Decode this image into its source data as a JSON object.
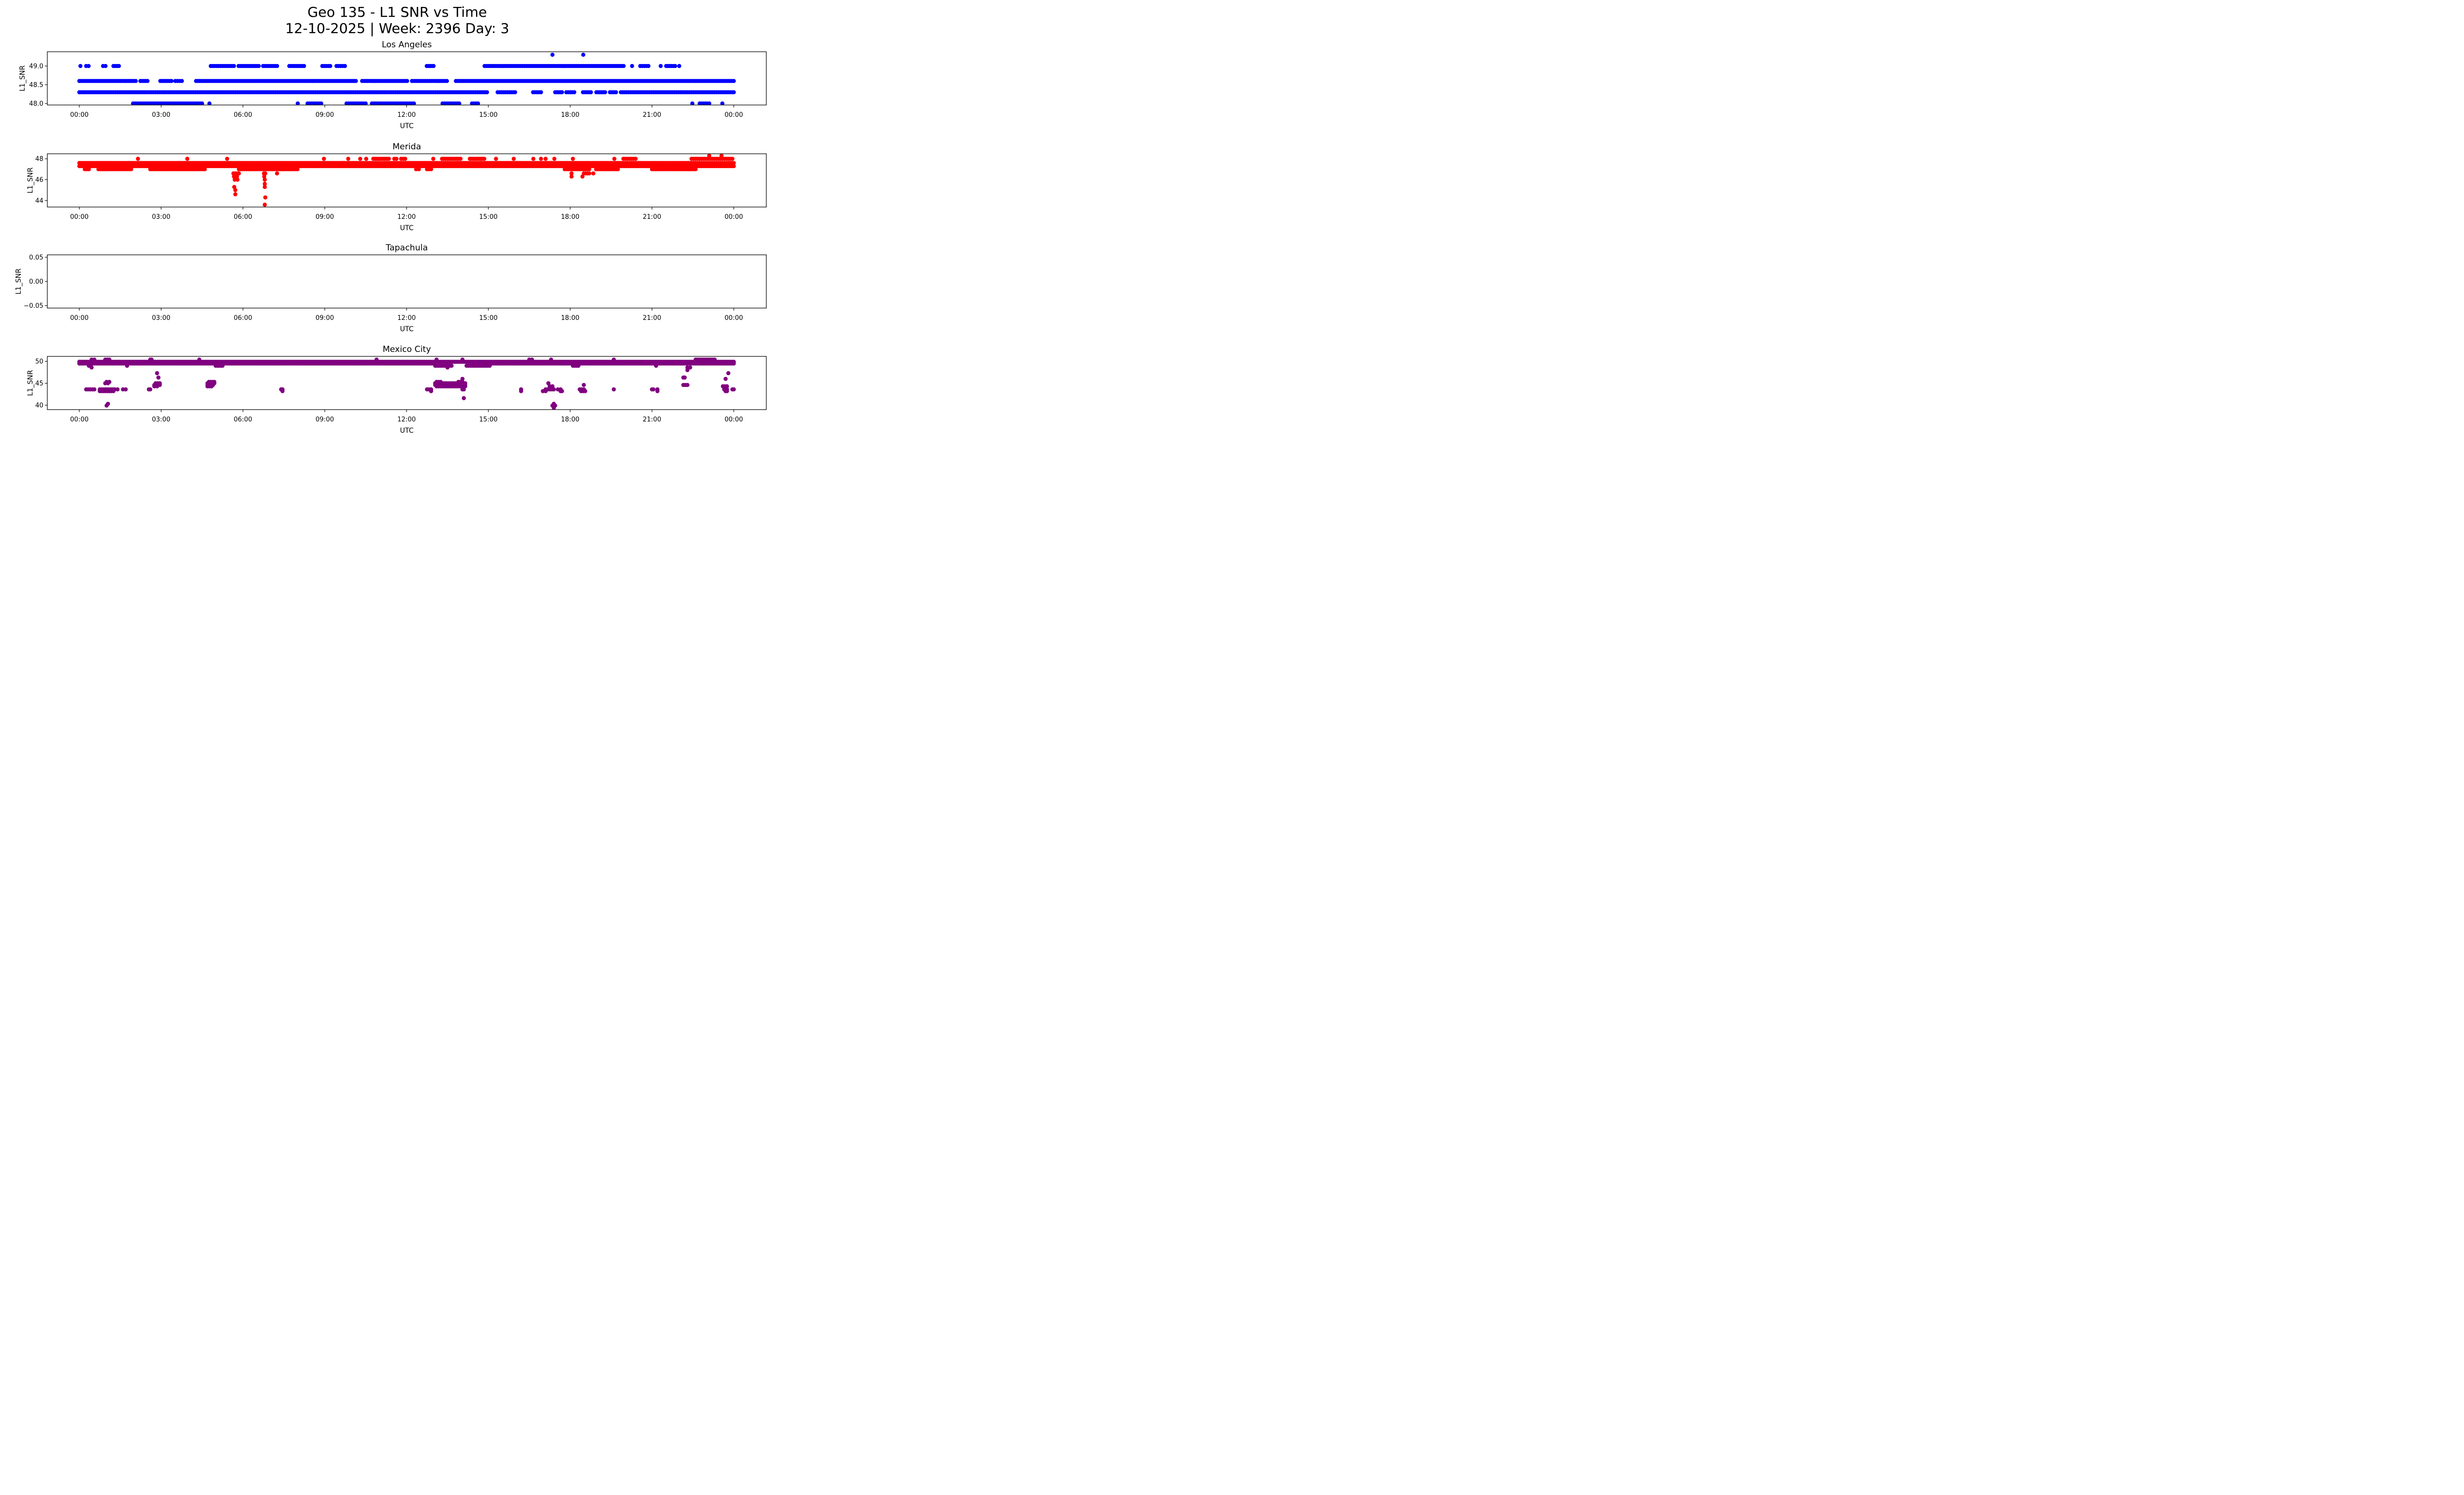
{
  "figure": {
    "title_line1": "Geo 135 - L1 SNR vs Time",
    "title_line2": "12-10-2025 | Week: 2396 Day: 3"
  },
  "chart_data": [
    {
      "type": "scatter",
      "title": "Los Angeles",
      "xlabel": "UTC",
      "ylabel": "L1_SNR",
      "color": "#0000ff",
      "xlim_hours": [
        -2.9,
        25.4
      ],
      "ylim": [
        47.96,
        49.38
      ],
      "x_ticks": [
        "00:00",
        "03:00",
        "06:00",
        "09:00",
        "12:00",
        "15:00",
        "18:00",
        "21:00",
        "00:00"
      ],
      "y_ticks": [
        "48.0",
        "48.5",
        "49.0"
      ],
      "y_tick_values": [
        48.0,
        48.5,
        49.0
      ],
      "runs": [
        {
          "value": 48.6,
          "spans_hours": [
            [
              0.0,
              2.07
            ],
            [
              2.24,
              2.5
            ],
            [
              2.97,
              3.38
            ],
            [
              3.52,
              3.76
            ],
            [
              4.28,
              10.14
            ],
            [
              10.37,
              12.02
            ],
            [
              12.2,
              13.48
            ],
            [
              13.81,
              24.0
            ]
          ]
        },
        {
          "value": 48.3,
          "spans_hours": [
            [
              0.0,
              14.95
            ],
            [
              15.34,
              15.98
            ],
            [
              16.64,
              16.93
            ],
            [
              17.45,
              17.7
            ],
            [
              17.86,
              18.15
            ],
            [
              18.47,
              18.76
            ],
            [
              18.96,
              19.28
            ],
            [
              19.46,
              19.68
            ],
            [
              19.86,
              24.0
            ]
          ]
        },
        {
          "value": 49.0,
          "spans_hours": [
            [
              0.04,
              0.04
            ],
            [
              0.25,
              0.34
            ],
            [
              0.87,
              0.96
            ],
            [
              1.25,
              1.45
            ],
            [
              4.82,
              5.67
            ],
            [
              5.84,
              6.58
            ],
            [
              6.74,
              7.25
            ],
            [
              7.7,
              8.24
            ],
            [
              8.91,
              9.2
            ],
            [
              9.43,
              9.74
            ],
            [
              12.74,
              12.99
            ],
            [
              14.86,
              19.96
            ],
            [
              20.27,
              20.27
            ],
            [
              20.57,
              20.87
            ],
            [
              21.32,
              21.32
            ],
            [
              21.52,
              21.85
            ],
            [
              22.0,
              22.0
            ]
          ]
        },
        {
          "value": 48.0,
          "spans_hours": [
            [
              1.97,
              4.5
            ],
            [
              4.77,
              4.77
            ],
            [
              8.01,
              8.01
            ],
            [
              8.37,
              8.87
            ],
            [
              9.8,
              10.5
            ],
            [
              10.73,
              12.27
            ],
            [
              13.32,
              13.93
            ],
            [
              14.4,
              14.62
            ],
            [
              22.48,
              22.48
            ],
            [
              22.75,
              23.1
            ],
            [
              23.58,
              23.58
            ]
          ]
        },
        {
          "value": 49.3,
          "spans_hours": [
            [
              17.35,
              17.35
            ],
            [
              18.48,
              18.48
            ]
          ]
        }
      ]
    },
    {
      "type": "scatter",
      "title": "Merida",
      "xlabel": "UTC",
      "ylabel": "L1_SNR",
      "color": "#ff0000",
      "xlim_hours": [
        -2.9,
        25.4
      ],
      "ylim": [
        43.38,
        48.48
      ],
      "x_ticks": [
        "00:00",
        "03:00",
        "06:00",
        "09:00",
        "12:00",
        "15:00",
        "18:00",
        "21:00",
        "00:00"
      ],
      "y_ticks": [
        "44",
        "46",
        "48"
      ],
      "y_tick_values": [
        44,
        46,
        48
      ],
      "runs": [
        {
          "value": 47.6,
          "spans_hours": [
            [
              0.0,
              24.0
            ]
          ]
        },
        {
          "value": 47.3,
          "spans_hours": [
            [
              0.0,
              24.0
            ]
          ]
        },
        {
          "value": 47.0,
          "spans_hours": [
            [
              0.2,
              0.35
            ],
            [
              0.7,
              1.9
            ],
            [
              2.6,
              4.6
            ],
            [
              5.85,
              8.0
            ],
            [
              12.35,
              12.45
            ],
            [
              12.75,
              12.9
            ],
            [
              17.8,
              18.7
            ],
            [
              18.95,
              19.75
            ],
            [
              21.0,
              22.6
            ]
          ]
        },
        {
          "value": 48.0,
          "spans_hours": [
            [
              2.15,
              2.15
            ],
            [
              3.96,
              3.96
            ],
            [
              5.42,
              5.42
            ],
            [
              8.97,
              8.97
            ],
            [
              9.86,
              9.86
            ],
            [
              10.3,
              10.3
            ],
            [
              10.52,
              10.52
            ],
            [
              10.78,
              11.35
            ],
            [
              11.55,
              11.63
            ],
            [
              11.8,
              11.95
            ],
            [
              12.98,
              12.98
            ],
            [
              13.3,
              13.98
            ],
            [
              14.32,
              14.85
            ],
            [
              15.28,
              15.28
            ],
            [
              15.93,
              15.93
            ],
            [
              16.65,
              16.65
            ],
            [
              16.93,
              16.93
            ],
            [
              17.1,
              17.1
            ],
            [
              17.42,
              17.42
            ],
            [
              18.1,
              18.1
            ],
            [
              19.62,
              19.62
            ],
            [
              19.95,
              20.4
            ],
            [
              22.45,
              23.95
            ]
          ]
        },
        {
          "value": 48.3,
          "spans_hours": [
            [
              23.1,
              23.1
            ],
            [
              23.55,
              23.55
            ]
          ]
        },
        {
          "value": 46.6,
          "spans_hours": [
            [
              5.65,
              5.85
            ],
            [
              6.77,
              6.82
            ],
            [
              7.25,
              7.25
            ],
            [
              18.05,
              18.05
            ],
            [
              18.5,
              18.7
            ],
            [
              18.85,
              18.85
            ]
          ]
        },
        {
          "value": 46.3,
          "spans_hours": [
            [
              5.67,
              5.78
            ],
            [
              6.78,
              6.8
            ],
            [
              18.05,
              18.05
            ],
            [
              18.45,
              18.45
            ]
          ]
        },
        {
          "value": 46.0,
          "spans_hours": [
            [
              5.7,
              5.8
            ],
            [
              6.8,
              6.8
            ]
          ]
        },
        {
          "value": 45.6,
          "spans_hours": [
            [
              6.8,
              6.8
            ]
          ]
        },
        {
          "value": 45.3,
          "spans_hours": [
            [
              5.68,
              5.68
            ],
            [
              6.8,
              6.8
            ]
          ]
        },
        {
          "value": 45.0,
          "spans_hours": [
            [
              5.72,
              5.72
            ]
          ]
        },
        {
          "value": 44.6,
          "spans_hours": [
            [
              5.72,
              5.72
            ]
          ]
        },
        {
          "value": 44.3,
          "spans_hours": [
            [
              6.82,
              6.82
            ]
          ]
        },
        {
          "value": 43.6,
          "spans_hours": [
            [
              6.8,
              6.8
            ]
          ]
        }
      ]
    },
    {
      "type": "scatter",
      "title": "Tapachula",
      "xlabel": "UTC",
      "ylabel": "L1_SNR",
      "color": "#000000",
      "xlim_hours": [
        -2.9,
        25.4
      ],
      "ylim": [
        -0.055,
        0.055
      ],
      "x_ticks": [
        "00:00",
        "03:00",
        "06:00",
        "09:00",
        "12:00",
        "15:00",
        "18:00",
        "21:00",
        "00:00"
      ],
      "y_ticks": [
        "−0.05",
        "0.00",
        "0.05"
      ],
      "y_tick_values": [
        -0.05,
        0.0,
        0.05
      ],
      "runs": []
    },
    {
      "type": "scatter",
      "title": "Mexico City",
      "xlabel": "UTC",
      "ylabel": "L1_SNR",
      "color": "#800080",
      "xlim_hours": [
        -2.9,
        25.4
      ],
      "ylim": [
        38.98,
        51.14
      ],
      "x_ticks": [
        "00:00",
        "03:00",
        "06:00",
        "09:00",
        "12:00",
        "15:00",
        "18:00",
        "21:00",
        "00:00"
      ],
      "y_ticks": [
        "40",
        "45",
        "50"
      ],
      "y_tick_values": [
        40,
        45,
        50
      ],
      "runs": [
        {
          "value": 49.9,
          "spans_hours": [
            [
              0.0,
              24.0
            ]
          ]
        },
        {
          "value": 49.5,
          "spans_hours": [
            [
              0.0,
              13.0
            ],
            [
              14.45,
              15.1
            ],
            [
              15.1,
              24.0
            ]
          ]
        },
        {
          "value": 50.4,
          "spans_hours": [
            [
              0.45,
              0.55
            ],
            [
              0.95,
              1.1
            ],
            [
              2.6,
              2.65
            ],
            [
              4.4,
              4.4
            ],
            [
              10.9,
              10.9
            ],
            [
              13.1,
              13.1
            ],
            [
              14.05,
              14.05
            ],
            [
              16.5,
              16.6
            ],
            [
              17.3,
              17.3
            ],
            [
              19.6,
              19.6
            ],
            [
              22.6,
              23.3
            ]
          ]
        },
        {
          "value": 49.0,
          "spans_hours": [
            [
              0.35,
              0.35
            ],
            [
              1.75,
              1.75
            ],
            [
              5.0,
              5.25
            ],
            [
              13.05,
              13.65
            ],
            [
              14.2,
              15.05
            ],
            [
              18.1,
              18.3
            ],
            [
              21.15,
              21.15
            ]
          ]
        },
        {
          "value": 48.6,
          "spans_hours": [
            [
              0.45,
              0.45
            ],
            [
              13.5,
              13.5
            ],
            [
              22.3,
              22.4
            ]
          ]
        },
        {
          "value": 48.0,
          "spans_hours": [
            [
              22.3,
              22.3
            ]
          ]
        },
        {
          "value": 47.3,
          "spans_hours": [
            [
              2.85,
              2.85
            ],
            [
              23.8,
              23.8
            ]
          ]
        },
        {
          "value": 46.3,
          "spans_hours": [
            [
              2.9,
              2.9
            ],
            [
              22.15,
              22.2
            ]
          ]
        },
        {
          "value": 46.0,
          "spans_hours": [
            [
              14.05,
              14.05
            ],
            [
              23.7,
              23.7
            ]
          ]
        },
        {
          "value": 45.3,
          "spans_hours": [
            [
              1.0,
              1.1
            ],
            [
              4.75,
              4.95
            ],
            [
              13.1,
              13.25
            ],
            [
              13.9,
              14.05
            ]
          ]
        },
        {
          "value": 45.0,
          "spans_hours": [
            [
              0.95,
              1.05
            ],
            [
              2.8,
              2.95
            ],
            [
              4.7,
              4.95
            ],
            [
              13.05,
              14.15
            ],
            [
              17.2,
              17.2
            ]
          ]
        },
        {
          "value": 44.6,
          "spans_hours": [
            [
              2.75,
              2.95
            ],
            [
              4.7,
              4.9
            ],
            [
              13.05,
              14.15
            ],
            [
              18.5,
              18.5
            ],
            [
              22.15,
              22.3
            ]
          ]
        },
        {
          "value": 44.3,
          "spans_hours": [
            [
              2.75,
              2.85
            ],
            [
              4.7,
              4.85
            ],
            [
              13.1,
              14.15
            ],
            [
              17.25,
              17.35
            ],
            [
              23.6,
              23.75
            ]
          ]
        },
        {
          "value": 43.6,
          "spans_hours": [
            [
              0.25,
              0.55
            ],
            [
              0.75,
              1.25
            ],
            [
              1.3,
              1.4
            ],
            [
              1.6,
              1.7
            ],
            [
              2.55,
              2.6
            ],
            [
              7.4,
              7.45
            ],
            [
              12.75,
              12.9
            ],
            [
              14.05,
              14.1
            ],
            [
              16.2,
              16.2
            ],
            [
              17.1,
              17.4
            ],
            [
              17.55,
              17.65
            ],
            [
              18.35,
              18.5
            ],
            [
              19.6,
              19.6
            ],
            [
              21.0,
              21.05
            ],
            [
              21.2,
              21.2
            ],
            [
              23.65,
              23.75
            ],
            [
              23.95,
              24.0
            ]
          ]
        },
        {
          "value": 43.2,
          "spans_hours": [
            [
              0.75,
              1.25
            ],
            [
              7.45,
              7.45
            ],
            [
              12.9,
              12.9
            ],
            [
              16.2,
              16.2
            ],
            [
              17.0,
              17.1
            ],
            [
              17.65,
              17.7
            ],
            [
              18.4,
              18.55
            ],
            [
              21.2,
              21.2
            ],
            [
              23.7,
              23.75
            ]
          ]
        },
        {
          "value": 41.6,
          "spans_hours": [
            [
              14.1,
              14.1
            ]
          ]
        },
        {
          "value": 40.3,
          "spans_hours": [
            [
              1.05,
              1.05
            ],
            [
              17.4,
              17.4
            ]
          ]
        },
        {
          "value": 39.9,
          "spans_hours": [
            [
              1.0,
              1.0
            ],
            [
              17.35,
              17.45
            ]
          ]
        },
        {
          "value": 39.4,
          "spans_hours": [
            [
              17.4,
              17.4
            ]
          ]
        }
      ]
    }
  ]
}
